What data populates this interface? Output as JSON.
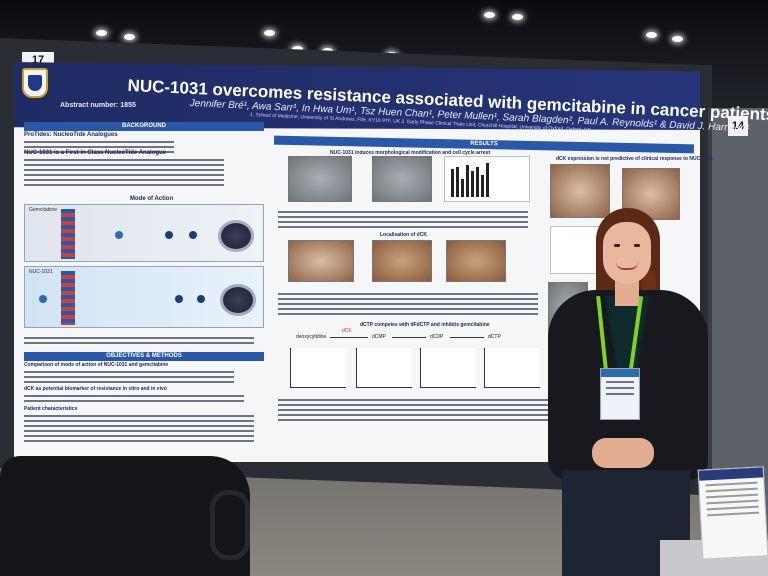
{
  "scene": {
    "board_number_left": "17",
    "board_number_right": "14"
  },
  "poster": {
    "title": "NUC-1031 overcomes resistance associated with gemcitabine in cancer patients",
    "abstract_number": "Abstract number: 1855",
    "authors": "Jennifer Bré¹, Awa Sarr¹, In Hwa Um¹, Tsz Huen Chan¹, Peter Mullen¹, Sarah Blagden², Paul A. Reynolds¹ & David J. Harrison¹",
    "affiliations": "1. School of Medicine, University of St Andrews, Fife, KY16 9TF, UK   2. Early Phase Clinical Trials Unit, Churchill Hospital, University of Oxford, Oxford, UK",
    "sections": {
      "background": "BACKGROUND",
      "results": "RESULTS",
      "objectives": "OBJECTIVES & METHODS",
      "mode_of_action": "Mode of Action",
      "figure_title_1": "NUC-1031 induces morphological modification and cell cycle arrest",
      "figure_title_2": "Localisation of dCK",
      "figure_title_3": "dCTP competes with dFdCTP and inhibits gemcitabine",
      "figure_title_4": "dCK expression is not predictive of clinical response to NUC-1031",
      "background_sub_1": "ProTides: NucleoTide Analogues",
      "background_sub_2": "NUC-1031 is a First in Class NucleoTide Analogue",
      "objectives_sub_1": "Comparison of mode of action of NUC-1031 and gemcitabine",
      "objectives_sub_2": "dCK as potential biomarker of resistance in vitro and in vivo",
      "objectives_sub_3": "Patient characteristics"
    },
    "mechanism_labels": {
      "gemcitabine": "Gemcitabine",
      "nuc1031": "NUC-1031"
    },
    "pathway": {
      "dck": "dCK",
      "deoxycytidine": "deoxycytidine",
      "dcmp": "dCMP",
      "dcdp": "dCDP",
      "dctp": "dCTP"
    }
  }
}
